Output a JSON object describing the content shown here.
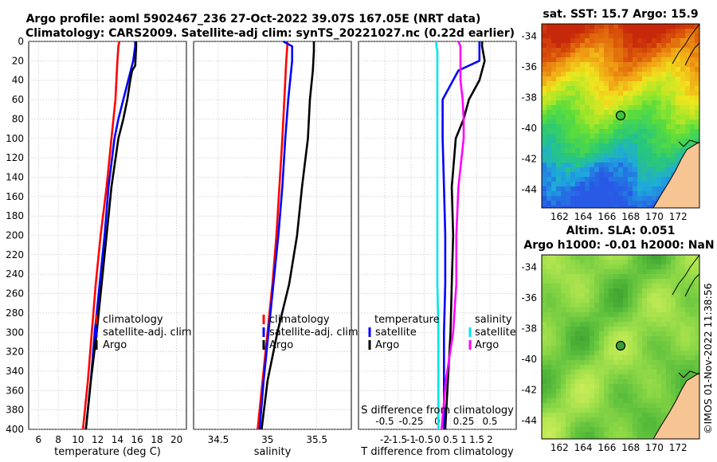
{
  "figure": {
    "title_line1": "Argo profile: aoml 5902467_236 27-Oct-2022 39.07S 167.05E (NRT data)",
    "title_line2": "Climatology: CARS2009. Satellite-adj clim: synTS_20221027.nc (0.22d earlier)",
    "timestamp": "©IMOS 01-Nov-2022 11:38:56"
  },
  "chart_data": [
    {
      "id": "temperature",
      "type": "line",
      "xlabel": "temperature (deg C)",
      "ylabel": "",
      "xlim": [
        5,
        21
      ],
      "ylim": [
        400,
        0
      ],
      "xticks": [
        "6",
        "8",
        "10",
        "12",
        "14",
        "16",
        "18",
        "20"
      ],
      "xtick_values": [
        6,
        8,
        10,
        12,
        14,
        16,
        18,
        20
      ],
      "yticks": [
        "0",
        "20",
        "40",
        "60",
        "80",
        "100",
        "120",
        "140",
        "160",
        "180",
        "200",
        "220",
        "240",
        "260",
        "280",
        "300",
        "320",
        "340",
        "360",
        "380",
        "400"
      ],
      "ytick_values": [
        0,
        20,
        40,
        60,
        80,
        100,
        120,
        140,
        160,
        180,
        200,
        220,
        240,
        260,
        280,
        300,
        320,
        340,
        360,
        380,
        400
      ],
      "grid": true,
      "series": [
        {
          "name": "climatology",
          "color": "#ff0000",
          "depth": [
            0,
            5,
            20,
            40,
            60,
            80,
            100,
            150,
            200,
            250,
            300,
            350,
            400
          ],
          "values": [
            14.2,
            14.1,
            14.0,
            13.9,
            13.8,
            13.6,
            13.4,
            12.9,
            12.3,
            11.8,
            11.4,
            11.0,
            10.5
          ]
        },
        {
          "name": "satellite-adj. clim",
          "color": "#0000ff",
          "depth": [
            0,
            5,
            20,
            40,
            60,
            80,
            100,
            150,
            200,
            250,
            300,
            350,
            400
          ],
          "values": [
            15.8,
            15.8,
            15.6,
            15.1,
            14.6,
            14.1,
            13.7,
            13.1,
            12.7,
            12.2,
            11.7,
            11.3,
            10.8
          ]
        },
        {
          "name": "Argo",
          "color": "#000000",
          "depth": [
            0,
            5,
            25,
            30,
            40,
            60,
            80,
            100,
            150,
            200,
            250,
            300,
            350,
            400
          ],
          "values": [
            15.9,
            15.9,
            15.8,
            15.5,
            15.3,
            15.0,
            14.6,
            14.1,
            13.4,
            12.9,
            12.4,
            11.9,
            11.3,
            10.8
          ]
        }
      ],
      "legend": [
        "climatology",
        "satellite-adj. clim",
        "Argo"
      ]
    },
    {
      "id": "salinity",
      "type": "line",
      "xlabel": "salinity",
      "xlim": [
        34.25,
        35.85
      ],
      "ylim": [
        400,
        0
      ],
      "xticks": [
        "34.5",
        "35",
        "35.5"
      ],
      "xtick_values": [
        34.5,
        35.0,
        35.5
      ],
      "grid": true,
      "series": [
        {
          "name": "climatology",
          "color": "#ff0000",
          "depth": [
            0,
            5,
            20,
            60,
            100,
            150,
            200,
            250,
            300,
            350,
            400
          ],
          "values": [
            35.2,
            35.2,
            35.19,
            35.17,
            35.15,
            35.12,
            35.09,
            35.05,
            35.0,
            34.95,
            34.9
          ]
        },
        {
          "name": "satellite-adj. clim",
          "color": "#0000ff",
          "depth": [
            0,
            5,
            20,
            60,
            100,
            150,
            200,
            250,
            300,
            350,
            400
          ],
          "values": [
            35.16,
            35.25,
            35.25,
            35.21,
            35.18,
            35.15,
            35.11,
            35.06,
            35.01,
            34.96,
            34.92
          ]
        },
        {
          "name": "Argo",
          "color": "#000000",
          "depth": [
            0,
            10,
            30,
            60,
            100,
            150,
            200,
            250,
            300,
            350,
            400
          ],
          "values": [
            35.47,
            35.47,
            35.46,
            35.43,
            35.41,
            35.35,
            35.3,
            35.22,
            35.1,
            35.0,
            34.94
          ]
        }
      ],
      "legend": [
        "climatology",
        "satellite-adj. clim",
        "Argo"
      ]
    },
    {
      "id": "difference",
      "type": "line",
      "xlabel": "T difference from climatology",
      "xlabel_top": "S difference from climatology",
      "xlim": [
        -3,
        3
      ],
      "ylim": [
        400,
        0
      ],
      "xticks": [
        "-2",
        "-1.5",
        "-1",
        "-0.5",
        "0",
        "0.5",
        "1",
        "1.5",
        "2"
      ],
      "xtick_values": [
        -2,
        -1.5,
        -1,
        -0.5,
        0,
        0.5,
        1,
        1.5,
        2
      ],
      "s_xticks": [
        "-0.5",
        "-0.25",
        "0",
        "0.25",
        "0.5"
      ],
      "s_xtick_values": [
        -0.5,
        -0.25,
        0,
        0.25,
        0.5
      ],
      "grid": true,
      "series": [
        {
          "name": "temperature satellite",
          "axis": "T",
          "color": "#0000ff",
          "depth": [
            0,
            5,
            20,
            30,
            60,
            100,
            150,
            200,
            250,
            300,
            350,
            400
          ],
          "values": [
            1.6,
            1.6,
            1.6,
            0.8,
            0.2,
            0.2,
            0.25,
            0.3,
            0.3,
            0.25,
            0.25,
            0.25
          ]
        },
        {
          "name": "temperature Argo",
          "axis": "T",
          "color": "#000000",
          "depth": [
            0,
            5,
            20,
            40,
            60,
            80,
            100,
            150,
            200,
            250,
            300,
            350,
            400
          ],
          "values": [
            1.7,
            1.7,
            1.8,
            1.6,
            1.2,
            1.0,
            0.7,
            0.55,
            0.6,
            0.55,
            0.5,
            0.4,
            0.3
          ]
        },
        {
          "name": "salinity satellite",
          "axis": "S",
          "color": "#00e5ee",
          "depth": [
            0,
            5,
            10,
            20,
            60,
            100,
            150,
            200,
            250,
            300,
            350,
            400
          ],
          "values": [
            -0.01,
            -0.01,
            0.0,
            0.0,
            0.0,
            0.0,
            0.0,
            0.0,
            0.0,
            0.01,
            0.01,
            0.01
          ]
        },
        {
          "name": "salinity Argo",
          "axis": "S",
          "color": "#ff00ff",
          "depth": [
            0,
            5,
            20,
            40,
            60,
            80,
            100,
            150,
            200,
            250,
            300,
            350,
            400
          ],
          "values": [
            0.2,
            0.22,
            0.22,
            0.22,
            0.24,
            0.25,
            0.25,
            0.2,
            0.18,
            0.18,
            0.15,
            0.08,
            0.04
          ]
        }
      ],
      "legend_temperature_title": "temperature",
      "legend_salinity_title": "salinity",
      "legend_temperature": [
        "satellite",
        "Argo"
      ],
      "legend_salinity": [
        "satellite",
        "Argo"
      ]
    },
    {
      "id": "sst_map",
      "type": "heatmap",
      "title": "sat. SST: 15.7  Argo: 15.9",
      "xlim": [
        160.5,
        173.8
      ],
      "ylim": [
        -45.2,
        -33.2
      ],
      "xticks": [
        "162",
        "164",
        "166",
        "168",
        "170",
        "172"
      ],
      "xtick_values": [
        162,
        164,
        166,
        168,
        170,
        172
      ],
      "yticks": [
        "-34",
        "-36",
        "-38",
        "-40",
        "-42",
        "-44"
      ],
      "ytick_values": [
        -34,
        -36,
        -38,
        -40,
        -42,
        -44
      ],
      "marker": {
        "lon": 167.05,
        "lat": -39.07
      }
    },
    {
      "id": "sla_map",
      "type": "heatmap",
      "title": "Altim. SLA: 0.051",
      "subtitle": "Argo h1000: -0.01 h2000: NaN",
      "xlim": [
        160.5,
        173.8
      ],
      "ylim": [
        -45.2,
        -33.2
      ],
      "xticks": [
        "162",
        "164",
        "166",
        "168",
        "170",
        "172"
      ],
      "xtick_values": [
        162,
        164,
        166,
        168,
        170,
        172
      ],
      "yticks": [
        "-34",
        "-36",
        "-38",
        "-40",
        "-42",
        "-44"
      ],
      "ytick_values": [
        -34,
        -36,
        -38,
        -40,
        -42,
        -44
      ],
      "marker": {
        "lon": 167.05,
        "lat": -39.07
      }
    }
  ],
  "colors": {
    "grid": "#bbbbbb",
    "land": "#f7c494",
    "marker_fill_sst": "#3cc23c",
    "marker_fill_sla": "#3a9b3a"
  }
}
